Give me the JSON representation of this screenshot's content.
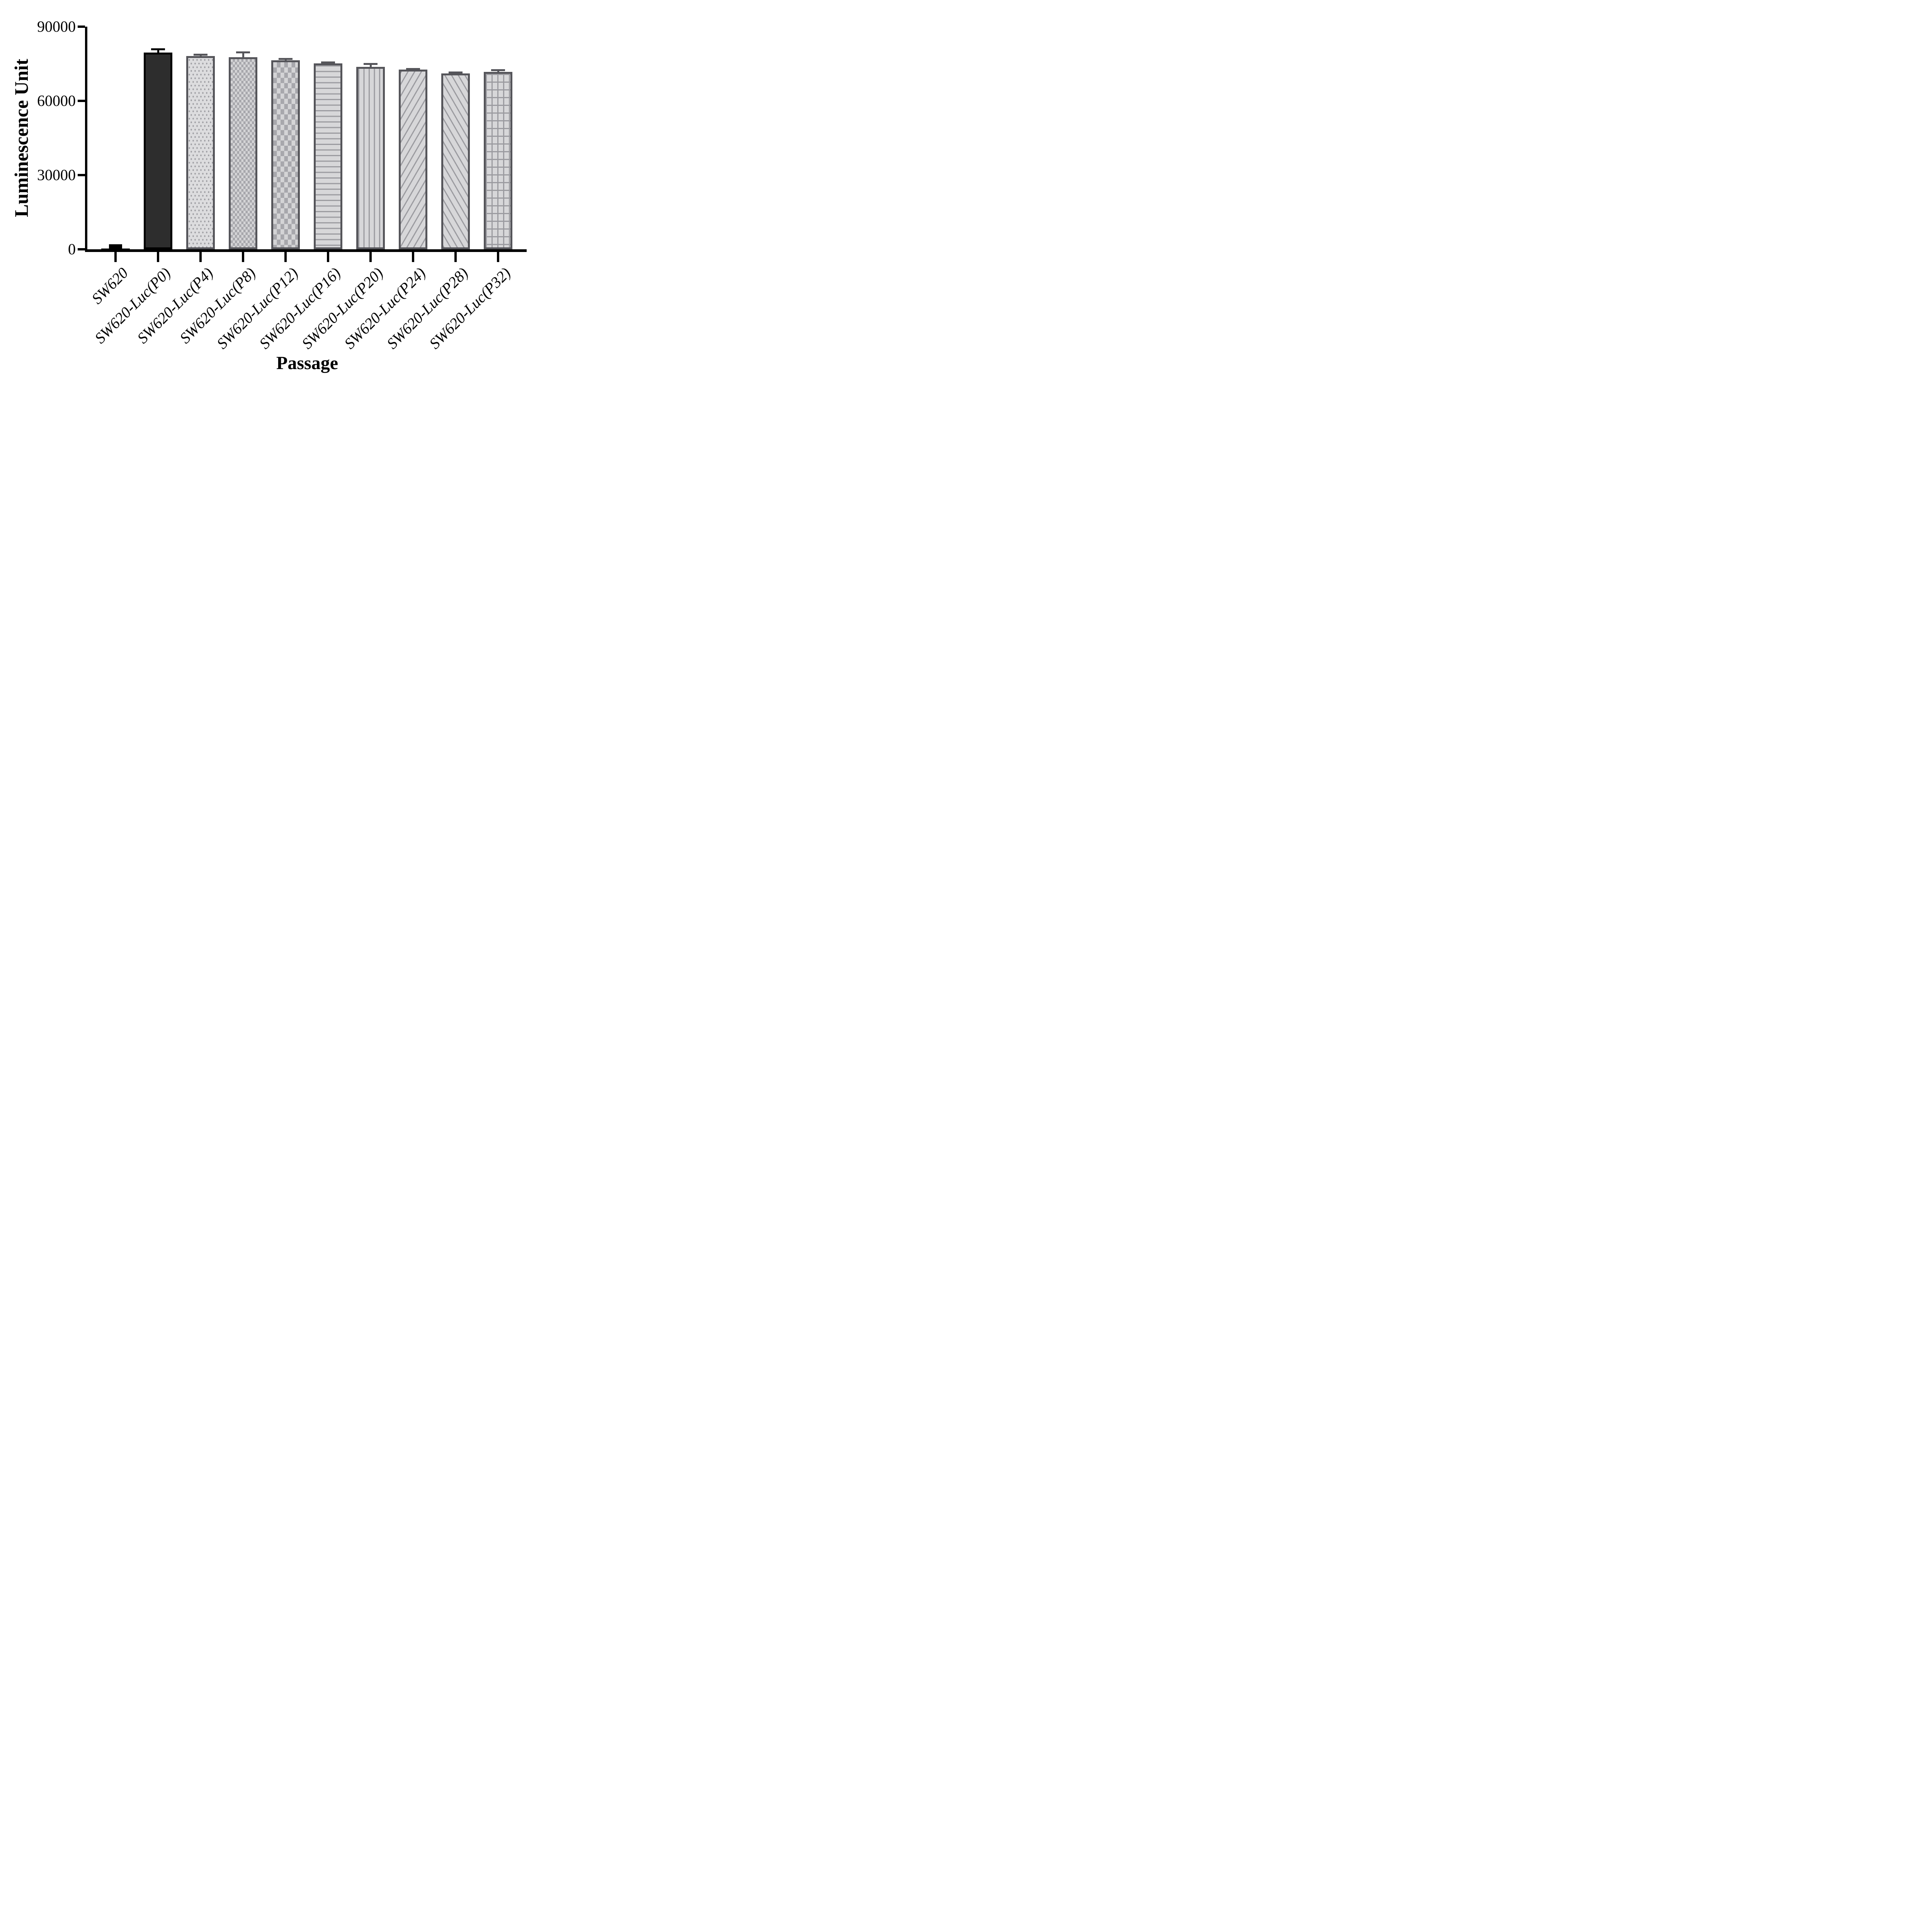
{
  "figure": {
    "background": "#ffffff",
    "axis_color": "#000000",
    "bar_border_gray": "#55555a",
    "pattern_gray": "#9b9ba0",
    "fill_light": "#d7d7d9",
    "p0_fill": "#2d2d2d"
  },
  "chart_data": {
    "type": "bar",
    "title": "",
    "xlabel": "Passage",
    "ylabel": "Luminescence Unit",
    "ylim": [
      0,
      90000
    ],
    "yticks": [
      0,
      30000,
      60000,
      90000
    ],
    "ytick_labels": [
      "0",
      "30000",
      "60000",
      "90000"
    ],
    "categories": [
      "SW620",
      "SW620-Luc(P0)",
      "SW620-Luc(P4)",
      "SW620-Luc(P8)",
      "SW620-Luc(P12)",
      "SW620-Luc(P16)",
      "SW620-Luc(P20)",
      "SW620-Luc(P24)",
      "SW620-Luc(P28)",
      "SW620-Luc(P32)"
    ],
    "values": [
      300,
      79500,
      78050,
      77600,
      76400,
      75200,
      73800,
      72700,
      71150,
      71700
    ],
    "errors_sd": [
      1700,
      1650,
      950,
      2350,
      900,
      800,
      1550,
      550,
      800,
      1050
    ],
    "error_direction": "up",
    "patterns": [
      "solid-black",
      "solid-dark",
      "dots",
      "checker-fine",
      "checker-coarse",
      "hlines",
      "vlines",
      "diag-up",
      "diag-down",
      "grid"
    ],
    "grid": "off",
    "legend": "none"
  }
}
